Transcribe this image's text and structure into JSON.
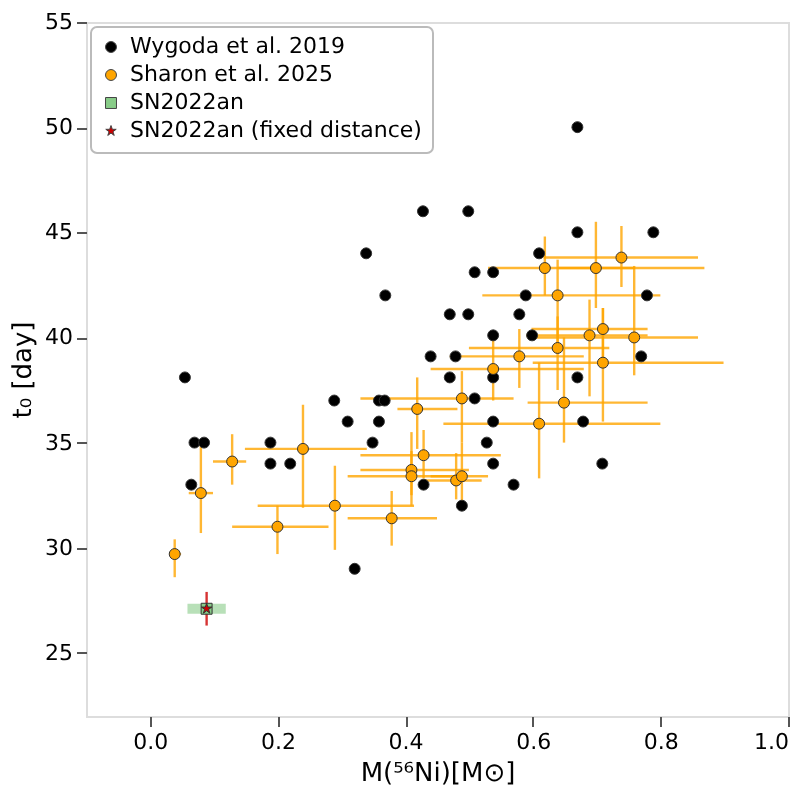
{
  "chart_data": {
    "type": "scatter",
    "xlabel": "M(⁵⁶Ni)[M⊙]",
    "ylabel": "t₀ [day]",
    "xlim": [
      -0.1,
      1.0
    ],
    "ylim": [
      22,
      55
    ],
    "xticks": [
      {
        "value": 0,
        "label": "0.0"
      },
      {
        "value": 0.2,
        "label": "0.2"
      },
      {
        "value": 0.4,
        "label": "0.4"
      },
      {
        "value": 0.6,
        "label": "0.6"
      },
      {
        "value": 0.8,
        "label": "0.8"
      },
      {
        "value": 1.0,
        "label": "1.0"
      }
    ],
    "yticks": [
      25,
      30,
      35,
      40,
      45,
      50,
      55
    ],
    "grid": false,
    "legend": "top left",
    "series": [
      {
        "name": "Wygoda et al. 2019",
        "color": "#000000",
        "marker": "circle",
        "x": [
          0.428,
          0.339,
          0.369,
          0.44,
          0.479,
          0.055,
          0.67,
          0.499,
          0.67,
          0.789,
          0.61,
          0.509,
          0.538,
          0.589,
          0.779,
          0.47,
          0.499,
          0.579,
          0.538,
          0.599,
          0.77,
          0.47,
          0.538,
          0.67,
          0.509,
          0.538,
          0.679,
          0.528,
          0.538,
          0.709,
          0.57,
          0.489,
          0.429,
          0.289,
          0.359,
          0.368,
          0.31,
          0.359,
          0.07,
          0.085,
          0.189,
          0.349,
          0.189,
          0.22,
          0.065,
          0.321
        ],
        "values": [
          46.0,
          44.0,
          42.0,
          39.1,
          39.1,
          38.1,
          50.0,
          46.0,
          45.0,
          45.0,
          44.0,
          43.1,
          43.1,
          42.0,
          42.0,
          41.1,
          41.1,
          41.1,
          40.1,
          40.1,
          39.1,
          38.1,
          38.1,
          38.1,
          37.1,
          36.0,
          36.0,
          35.0,
          34.0,
          34.0,
          33.0,
          32.0,
          33.0,
          37.0,
          37.0,
          37.0,
          36.0,
          36.0,
          35.0,
          35.0,
          35.0,
          35.0,
          34.0,
          34.0,
          33.0,
          29.0
        ]
      },
      {
        "name": "Sharon et al. 2025",
        "color": "#ffa500",
        "marker": "circle",
        "x": [
          0.039,
          0.08,
          0.129,
          0.2,
          0.24,
          0.29,
          0.379,
          0.41,
          0.41,
          0.419,
          0.429,
          0.48,
          0.489,
          0.489,
          0.538,
          0.579,
          0.61,
          0.639,
          0.649,
          0.689,
          0.71,
          0.71,
          0.759,
          0.639,
          0.619,
          0.699,
          0.739
        ],
        "values": [
          29.7,
          32.6,
          34.1,
          31.0,
          34.7,
          32.0,
          31.4,
          33.7,
          33.4,
          36.6,
          34.4,
          33.2,
          33.4,
          37.1,
          38.5,
          39.1,
          35.9,
          39.5,
          36.9,
          40.1,
          38.8,
          40.4,
          40.0,
          42.0,
          43.3,
          43.3,
          43.8
        ],
        "xerrors": [
          [
            0.031,
            0.049
          ],
          [
            0.061,
            0.099
          ],
          [
            0.099,
            0.151
          ],
          [
            0.129,
            0.28
          ],
          [
            0.149,
            0.34
          ],
          [
            0.169,
            0.414
          ],
          [
            0.31,
            0.45
          ],
          [
            0.33,
            0.5
          ],
          [
            0.31,
            0.49
          ],
          [
            0.388,
            0.482
          ],
          [
            0.33,
            0.55
          ],
          [
            0.43,
            0.52
          ],
          [
            0.44,
            0.53
          ],
          [
            0.33,
            0.57
          ],
          [
            0.44,
            0.68
          ],
          [
            0.47,
            0.68
          ],
          [
            0.46,
            0.8
          ],
          [
            0.5,
            0.72
          ],
          [
            0.592,
            0.78
          ],
          [
            0.59,
            0.78
          ],
          [
            0.6,
            0.899
          ],
          [
            0.598,
            0.78
          ],
          [
            0.592,
            0.859
          ],
          [
            0.521,
            0.8
          ],
          [
            0.53,
            0.869
          ],
          [
            0.64,
            0.76
          ],
          [
            0.617,
            0.859
          ]
        ],
        "errors": [
          [
            28.6,
            30.4
          ],
          [
            30.7,
            35.1
          ],
          [
            33.0,
            35.4
          ],
          [
            29.7,
            32.0
          ],
          [
            31.9,
            36.8
          ],
          [
            29.9,
            33.9
          ],
          [
            30.1,
            32.7
          ],
          [
            32.5,
            35.5
          ],
          [
            32.0,
            34.6
          ],
          [
            34.7,
            38.1
          ],
          [
            33.3,
            35.6
          ],
          [
            32.3,
            34.5
          ],
          [
            32.2,
            35.0
          ],
          [
            35.0,
            38.4
          ],
          [
            37.0,
            40.0
          ],
          [
            37.6,
            40.4
          ],
          [
            33.3,
            38.8
          ],
          [
            37.5,
            41.0
          ],
          [
            35.0,
            40.0
          ],
          [
            37.2,
            41.8
          ],
          [
            36.0,
            41.4
          ],
          [
            38.8,
            41.4
          ],
          [
            38.2,
            43.4
          ],
          [
            39.6,
            43.7
          ],
          [
            42.0,
            44.8
          ],
          [
            41.4,
            45.5
          ],
          [
            42.4,
            45.3
          ]
        ]
      },
      {
        "name": "SN2022an",
        "color": "#88cc88",
        "marker": "square",
        "x": [
          0.089
        ],
        "values": [
          27.1
        ],
        "xerrors": [
          0.03
        ]
      },
      {
        "name": "SN2022an (fixed distance)",
        "color": "#cc0000",
        "marker": "star",
        "x": [
          0.089
        ],
        "values": [
          27.1
        ],
        "errors": [
          0.8
        ]
      }
    ]
  }
}
